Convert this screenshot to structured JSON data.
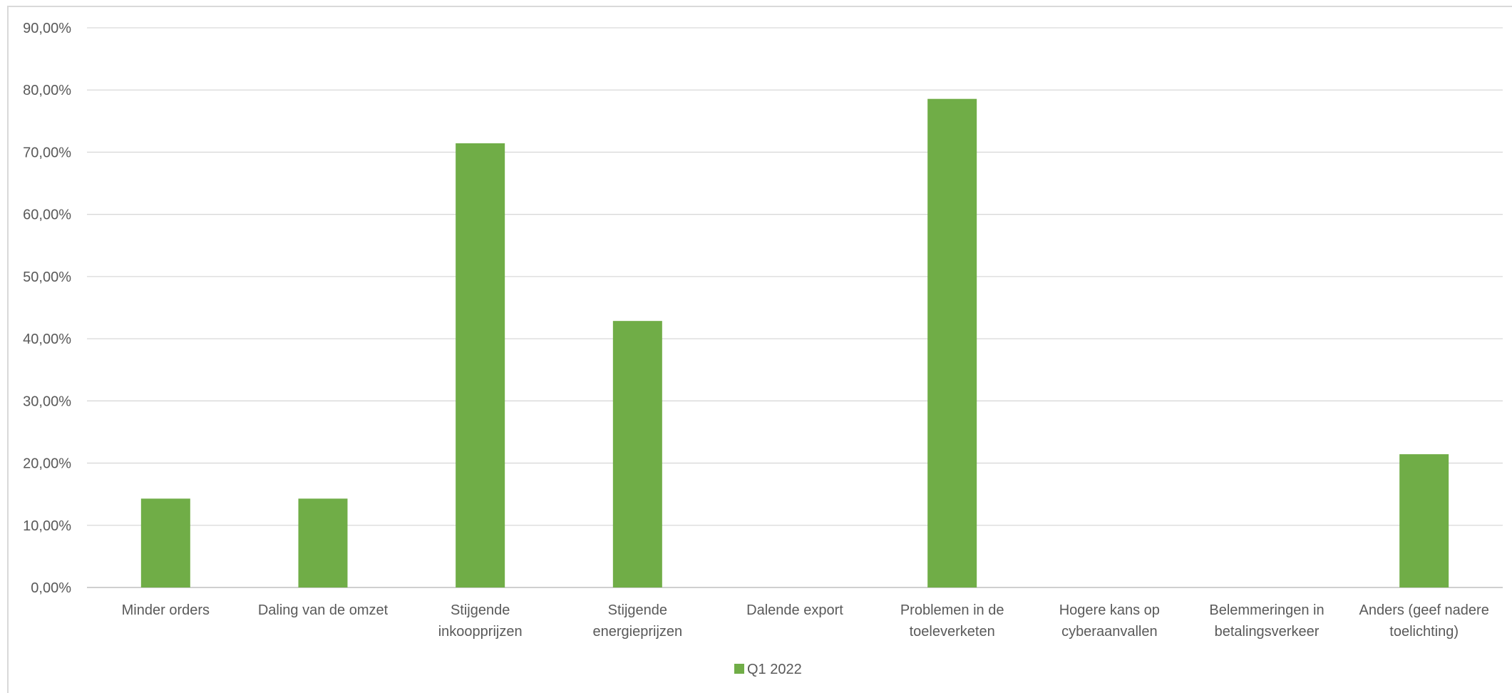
{
  "chart_data": {
    "type": "bar",
    "categories": [
      [
        "Minder orders"
      ],
      [
        "Daling van de omzet"
      ],
      [
        "Stijgende",
        "inkoopprijzen"
      ],
      [
        "Stijgende",
        "energieprijzen"
      ],
      [
        "Dalende export"
      ],
      [
        "Problemen in de",
        "toeleverketen"
      ],
      [
        "Hogere kans op",
        "cyberaanvallen"
      ],
      [
        "Belemmeringen in",
        "betalingsverkeer"
      ],
      [
        "Anders (geef nadere",
        "toelichting)"
      ]
    ],
    "series": [
      {
        "name": "Q1 2022",
        "color": "#70ad47",
        "values": [
          14.29,
          14.29,
          71.43,
          42.86,
          0,
          78.57,
          0,
          0,
          21.43
        ]
      }
    ],
    "ylim": [
      0,
      90
    ],
    "yticks": [
      "0,00%",
      "10,00%",
      "20,00%",
      "30,00%",
      "40,00%",
      "50,00%",
      "60,00%",
      "70,00%",
      "80,00%",
      "90,00%"
    ],
    "grid": true,
    "legend_position": "bottom",
    "colors": {
      "grid": "#d9d9d9",
      "axis": "#bfbfbf",
      "text": "#595959"
    }
  }
}
